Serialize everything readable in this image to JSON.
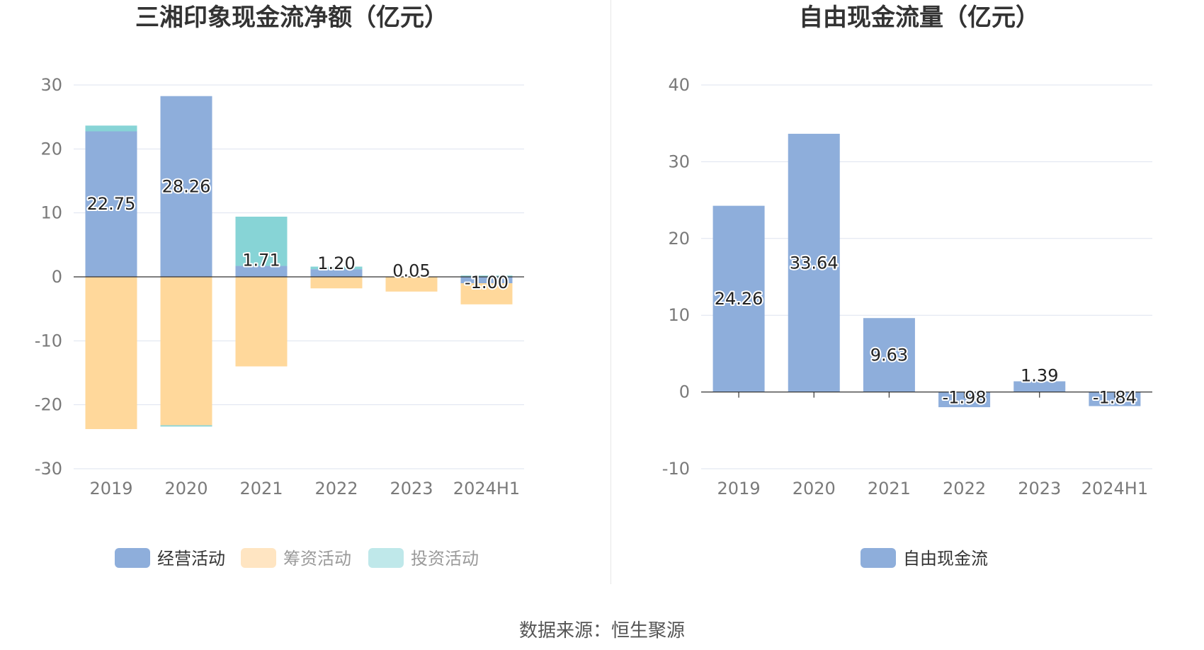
{
  "chart_data": [
    {
      "type": "bar",
      "stacked": true,
      "title": "三湘印象现金流净额（亿元）",
      "categories": [
        "2019",
        "2020",
        "2021",
        "2022",
        "2023",
        "2024H1"
      ],
      "ylim": [
        -30,
        30
      ],
      "yticks": [
        30,
        20,
        10,
        0,
        -10,
        -20,
        -30
      ],
      "grid": true,
      "legend_position": "bottom",
      "series": [
        {
          "name": "经营活动",
          "color": "#8eaedb",
          "values": [
            22.75,
            28.26,
            1.71,
            1.2,
            0.05,
            -1.0
          ]
        },
        {
          "name": "筹资活动",
          "color": "#ffd89b",
          "values": [
            -23.8,
            -23.2,
            -14.0,
            -1.8,
            -2.3,
            -3.3
          ]
        },
        {
          "name": "投资活动",
          "color": "#87d4d6",
          "values": [
            0.9,
            -0.2,
            7.7,
            0.4,
            0.0,
            0.2
          ]
        }
      ],
      "data_labels": [
        "22.75",
        "28.26",
        "1.71",
        "1.20",
        "0.05",
        "-1.00"
      ],
      "legend_colors": {
        "经营活动": "#8eaedb",
        "筹资活动": "#ffe5c2",
        "投资活动": "#bfe8ea"
      }
    },
    {
      "type": "bar",
      "title": "自由现金流量（亿元）",
      "categories": [
        "2019",
        "2020",
        "2021",
        "2022",
        "2023",
        "2024H1"
      ],
      "ylim": [
        -10,
        40
      ],
      "yticks": [
        40,
        30,
        20,
        10,
        0,
        -10
      ],
      "grid": true,
      "legend_position": "bottom",
      "series": [
        {
          "name": "自由现金流",
          "color": "#8eaedb",
          "values": [
            24.26,
            33.64,
            9.63,
            -1.98,
            1.39,
            -1.84
          ]
        }
      ],
      "data_labels": [
        "24.26",
        "33.64",
        "9.63",
        "-1.98",
        "1.39",
        "-1.84"
      ]
    }
  ],
  "footer": {
    "source": "数据来源：恒生聚源"
  }
}
